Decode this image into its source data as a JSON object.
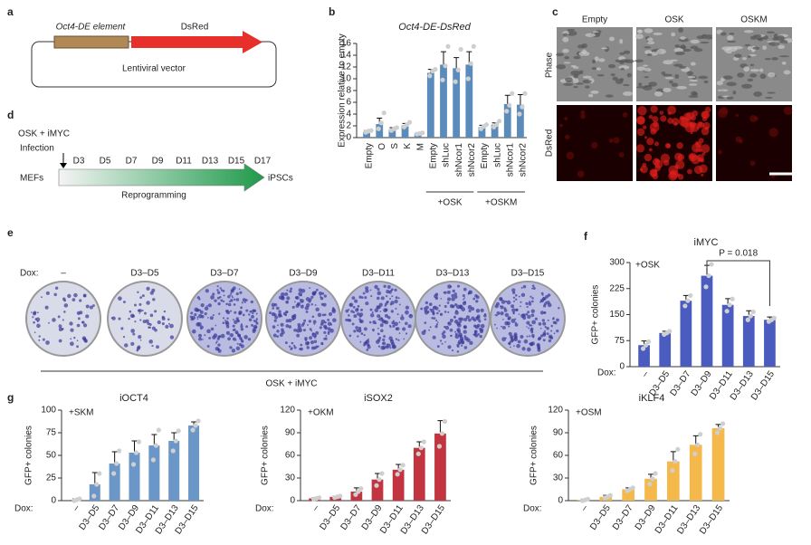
{
  "panel_labels": [
    "a",
    "b",
    "c",
    "d",
    "e",
    "f",
    "g"
  ],
  "panel_a": {
    "element": "Oct4-DE element",
    "reporter": "DsRed",
    "vector": "Lentiviral vector"
  },
  "panel_c": {
    "columns": [
      "Empty",
      "OSK",
      "OSKM"
    ],
    "rows": [
      "Phase",
      "DsRed"
    ]
  },
  "panel_d": {
    "title": "OSK + iMYC",
    "infection": "Infection",
    "days": [
      "D3",
      "D5",
      "D7",
      "D9",
      "D11",
      "D13",
      "D15",
      "D17"
    ],
    "start": "MEFs",
    "end": "iPSCs",
    "process": "Reprogramming"
  },
  "panel_e": {
    "dox_label": "Dox:",
    "conditions": [
      "–",
      "D3–D5",
      "D3–D7",
      "D3–D9",
      "D3–D11",
      "D3–D13",
      "D3–D15"
    ],
    "caption": "OSK + iMYC"
  },
  "chart_data": [
    {
      "type": "bar",
      "title": "Oct4-DE-DsRed",
      "ylabel": "Expression relative to empty",
      "color": "#5b8bbb",
      "categories": [
        "Empty",
        "O",
        "S",
        "K",
        "M",
        "Empty",
        "shLuc",
        "shNcor1",
        "shNcor2",
        "Empty",
        "shLuc",
        "shNcor1",
        "shNcor2"
      ],
      "groups": [
        "+OSK",
        "+OSKM"
      ],
      "values": [
        1,
        2.3,
        1.4,
        2.1,
        0.7,
        11,
        12.4,
        11.8,
        12.4,
        1.8,
        2.2,
        5.7,
        5.6
      ],
      "errors": [
        0.2,
        1,
        0.3,
        0.3,
        0.1,
        0.6,
        2.2,
        1.8,
        2.2,
        0.3,
        0.3,
        1.5,
        1.7
      ],
      "points": [
        [
          0.9,
          1.1,
          1.2
        ],
        [
          1.5,
          2.5,
          4.2
        ],
        [
          1.2,
          1.5,
          1.7
        ],
        [
          1.8,
          2.2,
          2.6
        ],
        [
          0.6,
          0.7,
          0.8
        ],
        [
          10.5,
          11.3,
          11.6
        ],
        [
          9.8,
          12.2,
          15.5
        ],
        [
          9.5,
          11.5,
          15
        ],
        [
          10,
          12.6,
          15.5
        ],
        [
          1.5,
          1.9,
          2.2
        ],
        [
          1.8,
          2.2,
          2.8
        ],
        [
          4.5,
          5.5,
          7.5
        ],
        [
          4,
          5.2,
          7.5
        ]
      ],
      "ylim": [
        0,
        16
      ],
      "yticks": [
        0,
        2,
        4,
        6,
        8,
        10,
        12,
        14,
        16
      ]
    },
    {
      "type": "bar",
      "title": "iMYC",
      "inset_label": "+OSK",
      "ylabel": "GFP+ colonies",
      "xlabel": "Dox:",
      "color": "#4a5cc0",
      "categories": [
        "–",
        "D3–D5",
        "D3–D7",
        "D3–D9",
        "D3–D11",
        "D3–D13",
        "D3–D15"
      ],
      "values": [
        62,
        97,
        190,
        262,
        178,
        146,
        135
      ],
      "errors": [
        12,
        5,
        15,
        30,
        18,
        15,
        8
      ],
      "points": [
        [
          52,
          62,
          72
        ],
        [
          93,
          97,
          102
        ],
        [
          175,
          190,
          205
        ],
        [
          230,
          262,
          295
        ],
        [
          160,
          178,
          195
        ],
        [
          135,
          146,
          158
        ],
        [
          130,
          135,
          140
        ]
      ],
      "annotation": "P = 0.018",
      "ylim": [
        0,
        300
      ],
      "yticks": [
        0,
        75,
        150,
        225,
        300
      ]
    },
    {
      "type": "bar",
      "title": "iOCT4",
      "inset_label": "+SKM",
      "ylabel": "GFP+ colonies",
      "xlabel": "Dox:",
      "color": "#6a97c7",
      "categories": [
        "–",
        "D3–D5",
        "D3–D7",
        "D3–D9",
        "D3–D11",
        "D3–D13",
        "D3–D15"
      ],
      "values": [
        1,
        18,
        41,
        53,
        61,
        66,
        83
      ],
      "errors": [
        1,
        13,
        13,
        13,
        12,
        9,
        4
      ],
      "points": [
        [
          0,
          1,
          2
        ],
        [
          5,
          18,
          30
        ],
        [
          30,
          41,
          55
        ],
        [
          40,
          53,
          65
        ],
        [
          45,
          61,
          78
        ],
        [
          55,
          66,
          77
        ],
        [
          78,
          83,
          88
        ]
      ],
      "ylim": [
        0,
        100
      ],
      "yticks": [
        0,
        25,
        50,
        75,
        100
      ]
    },
    {
      "type": "bar",
      "title": "iSOX2",
      "inset_label": "+OKM",
      "ylabel": "GFP+ colonies",
      "xlabel": "Dox:",
      "color": "#c2343f",
      "categories": [
        "–",
        "D3–D5",
        "D3–D7",
        "D3–D9",
        "D3–D11",
        "D3–D13",
        "D3–D15"
      ],
      "values": [
        3,
        5,
        12,
        28,
        41,
        70,
        89
      ],
      "errors": [
        1,
        1,
        5,
        8,
        7,
        8,
        17
      ],
      "points": [
        [
          2,
          3,
          4
        ],
        [
          4,
          5,
          6
        ],
        [
          8,
          12,
          16
        ],
        [
          20,
          28,
          36
        ],
        [
          35,
          41,
          47
        ],
        [
          62,
          70,
          78
        ],
        [
          72,
          89,
          105
        ]
      ],
      "ylim": [
        0,
        120
      ],
      "yticks": [
        0,
        30,
        60,
        90,
        120
      ]
    },
    {
      "type": "bar",
      "title": "iKLF4",
      "inset_label": "+OSM",
      "ylabel": "GFP+ colonies",
      "xlabel": "Dox:",
      "color": "#f5b84a",
      "categories": [
        "–",
        "D3–D5",
        "D3–D7",
        "D3–D9",
        "D3–D11",
        "D3–D13",
        "D3–D15"
      ],
      "values": [
        1,
        5,
        15,
        29,
        52,
        74,
        96
      ],
      "errors": [
        1,
        2,
        2,
        6,
        13,
        12,
        5
      ],
      "points": [
        [
          0,
          1,
          2
        ],
        [
          4,
          5,
          7
        ],
        [
          13,
          15,
          17
        ],
        [
          22,
          29,
          36
        ],
        [
          40,
          52,
          68
        ],
        [
          62,
          74,
          88
        ],
        [
          90,
          96,
          102
        ]
      ],
      "ylim": [
        0,
        120
      ],
      "yticks": [
        0,
        30,
        60,
        90,
        120
      ]
    }
  ]
}
